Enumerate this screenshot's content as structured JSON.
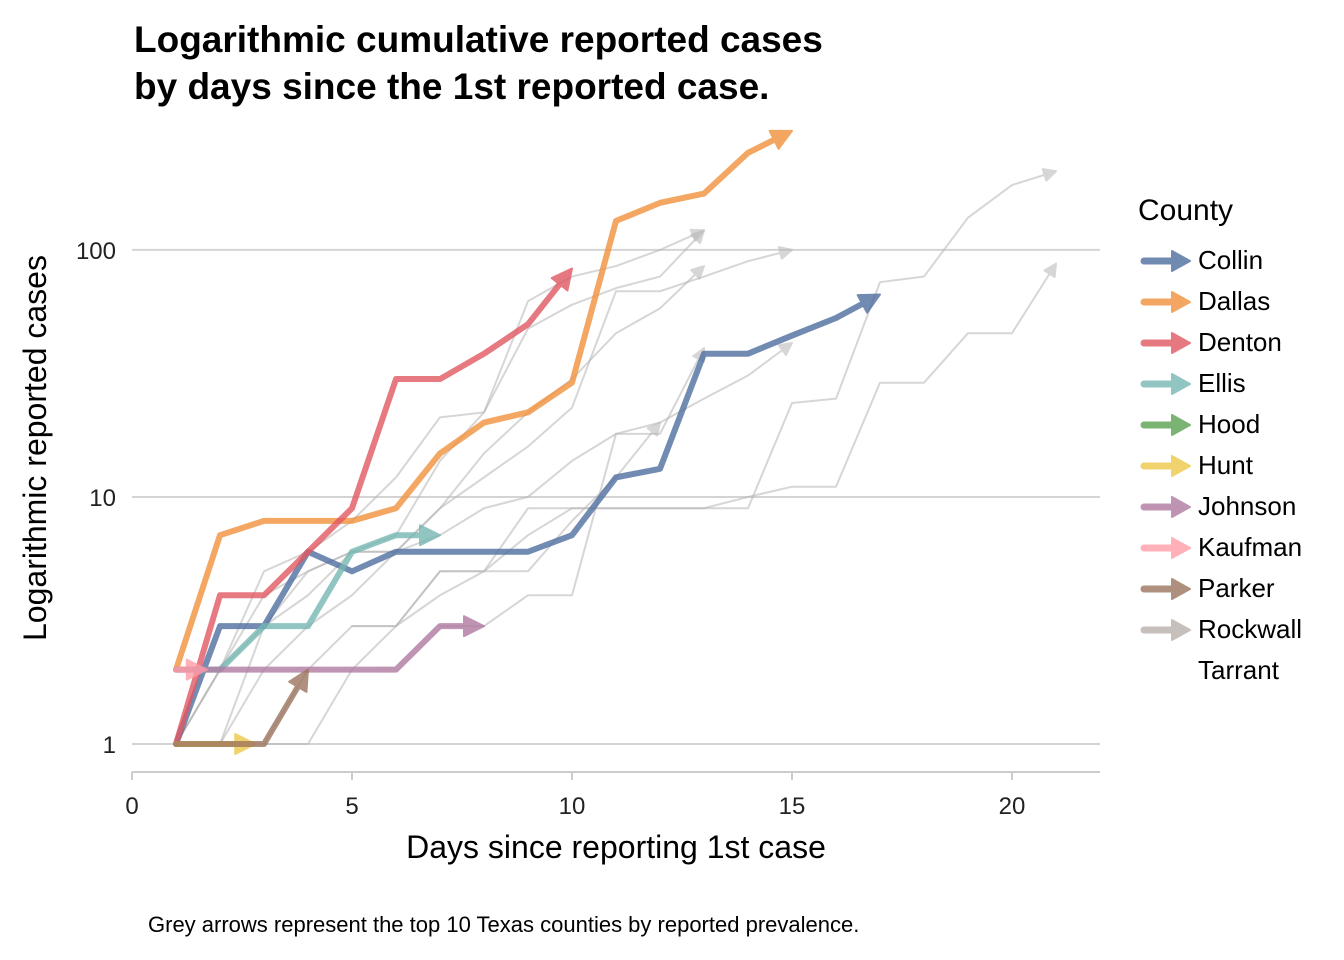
{
  "title": [
    "Logarithmic cumulative reported cases",
    "by days since the 1st reported case."
  ],
  "caption": "Grey arrows represent the top 10 Texas counties by reported prevalence.",
  "legend": {
    "title": "County",
    "position": "right"
  },
  "chart_data": {
    "type": "line",
    "xlabel": "Days since reporting 1st case",
    "ylabel": "Logarithmic reported cases",
    "x_scale": "linear",
    "y_scale": "log10",
    "xlim": [
      0,
      22
    ],
    "ylim": [
      0.75,
      350
    ],
    "x_ticks": [
      0,
      5,
      10,
      15,
      20
    ],
    "x_tick_labels": [
      "0",
      "5",
      "10",
      "15",
      "20"
    ],
    "y_ticks": [
      1,
      10,
      100
    ],
    "y_tick_labels": [
      "1",
      "10",
      "100"
    ],
    "grid": {
      "horizontal_major": true,
      "vertical": false
    },
    "series": [
      {
        "name": "Collin",
        "color": "#4e6e9f",
        "x": [
          1,
          2,
          3,
          4,
          5,
          6,
          7,
          8,
          9,
          10,
          11,
          12,
          13,
          14,
          15,
          16,
          17
        ],
        "y": [
          1,
          3,
          3,
          6,
          5,
          6,
          6,
          6,
          6,
          7,
          12,
          13,
          38,
          38,
          45,
          53,
          66
        ]
      },
      {
        "name": "Dallas",
        "color": "#f0913c",
        "x": [
          1,
          2,
          3,
          4,
          5,
          6,
          7,
          8,
          9,
          10,
          11,
          12,
          13,
          14,
          15
        ],
        "y": [
          2,
          7,
          8,
          8,
          8,
          9,
          15,
          20,
          22,
          29,
          131,
          155,
          169,
          247,
          303
        ]
      },
      {
        "name": "Denton",
        "color": "#e15762",
        "x": [
          1,
          2,
          3,
          4,
          5,
          6,
          7,
          8,
          9,
          10
        ],
        "y": [
          1,
          4,
          4,
          6,
          9,
          30,
          30,
          38,
          50,
          84
        ]
      },
      {
        "name": "Ellis",
        "color": "#76b7b2",
        "x": [
          1,
          2,
          3,
          4,
          5,
          6,
          7
        ],
        "y": [
          2,
          2,
          3,
          3,
          6,
          7,
          7
        ]
      },
      {
        "name": "Hood",
        "color": "#59a14f",
        "x": [],
        "y": []
      },
      {
        "name": "Hunt",
        "color": "#edc948",
        "x": [
          1,
          2,
          2.8
        ],
        "y": [
          1,
          1,
          1
        ]
      },
      {
        "name": "Johnson",
        "color": "#b07aa1",
        "x": [
          1,
          2,
          3,
          4,
          5,
          6,
          7,
          8
        ],
        "y": [
          2,
          2,
          2,
          2,
          2,
          2,
          3,
          3
        ]
      },
      {
        "name": "Kaufman",
        "color": "#ff9da7",
        "x": [
          1,
          1.7
        ],
        "y": [
          2,
          2
        ]
      },
      {
        "name": "Parker",
        "color": "#9c755f",
        "x": [
          1,
          2,
          3,
          4
        ],
        "y": [
          1,
          1,
          1,
          2
        ]
      },
      {
        "name": "Rockwall",
        "color": "#bab0ac",
        "x": [],
        "y": []
      },
      {
        "name": "Tarrant",
        "color": "",
        "x": [],
        "y": []
      }
    ],
    "reference_series": [
      {
        "x": [
          1,
          2,
          3,
          4,
          5,
          6,
          7,
          8,
          9,
          10,
          11,
          12,
          13
        ],
        "y": [
          1,
          2,
          5,
          6,
          8,
          12,
          21,
          22,
          48,
          60,
          70,
          78,
          120
        ]
      },
      {
        "x": [
          1,
          2,
          3,
          4,
          5,
          6,
          7,
          8,
          9,
          10,
          11,
          12,
          13
        ],
        "y": [
          1,
          2,
          4,
          5,
          6,
          7,
          14,
          22,
          62,
          78,
          86,
          100,
          120
        ]
      },
      {
        "x": [
          1,
          2,
          3,
          4,
          5,
          6,
          7,
          8,
          9,
          10,
          11,
          12,
          13,
          14,
          15
        ],
        "y": [
          1,
          2,
          3,
          4,
          6,
          6,
          7,
          9,
          10,
          14,
          18,
          20,
          25,
          31,
          42
        ]
      },
      {
        "x": [
          1,
          2,
          3,
          4,
          5,
          6,
          7,
          8,
          9,
          10,
          11,
          12,
          13
        ],
        "y": [
          1,
          1,
          3,
          5,
          6,
          6,
          9,
          15,
          22,
          30,
          46,
          58,
          86
        ]
      },
      {
        "x": [
          1,
          2,
          3,
          4,
          5,
          6,
          7,
          8,
          9,
          10,
          11,
          12,
          13,
          14,
          15
        ],
        "y": [
          1,
          1,
          2,
          3,
          4,
          6,
          9,
          12,
          16,
          23,
          68,
          68,
          78,
          90,
          100
        ]
      },
      {
        "x": [
          3,
          4,
          5,
          6,
          7,
          8,
          9,
          10,
          11,
          12,
          13,
          14,
          15,
          16,
          17,
          18,
          19,
          20,
          21
        ],
        "y": [
          1,
          1,
          2,
          3,
          4,
          5,
          7,
          9,
          9,
          9,
          9,
          10,
          11,
          11,
          29,
          29,
          46,
          46,
          88
        ]
      },
      {
        "x": [
          3,
          4,
          5,
          6,
          7,
          8,
          9,
          10,
          11,
          12,
          13,
          14,
          15,
          16,
          17,
          18,
          19,
          20,
          21
        ],
        "y": [
          1,
          2,
          3,
          3,
          5,
          5,
          9,
          9,
          9,
          9,
          9,
          9,
          24,
          25,
          74,
          78,
          135,
          183,
          208
        ]
      },
      {
        "x": [
          5,
          6,
          7,
          8,
          9,
          10,
          11,
          12
        ],
        "y": [
          3,
          3,
          5,
          5,
          5,
          8,
          12,
          20
        ]
      },
      {
        "x": [
          7,
          8,
          9,
          10,
          11,
          12,
          13
        ],
        "y": [
          3,
          3,
          4,
          4,
          18,
          18,
          40
        ]
      }
    ]
  }
}
